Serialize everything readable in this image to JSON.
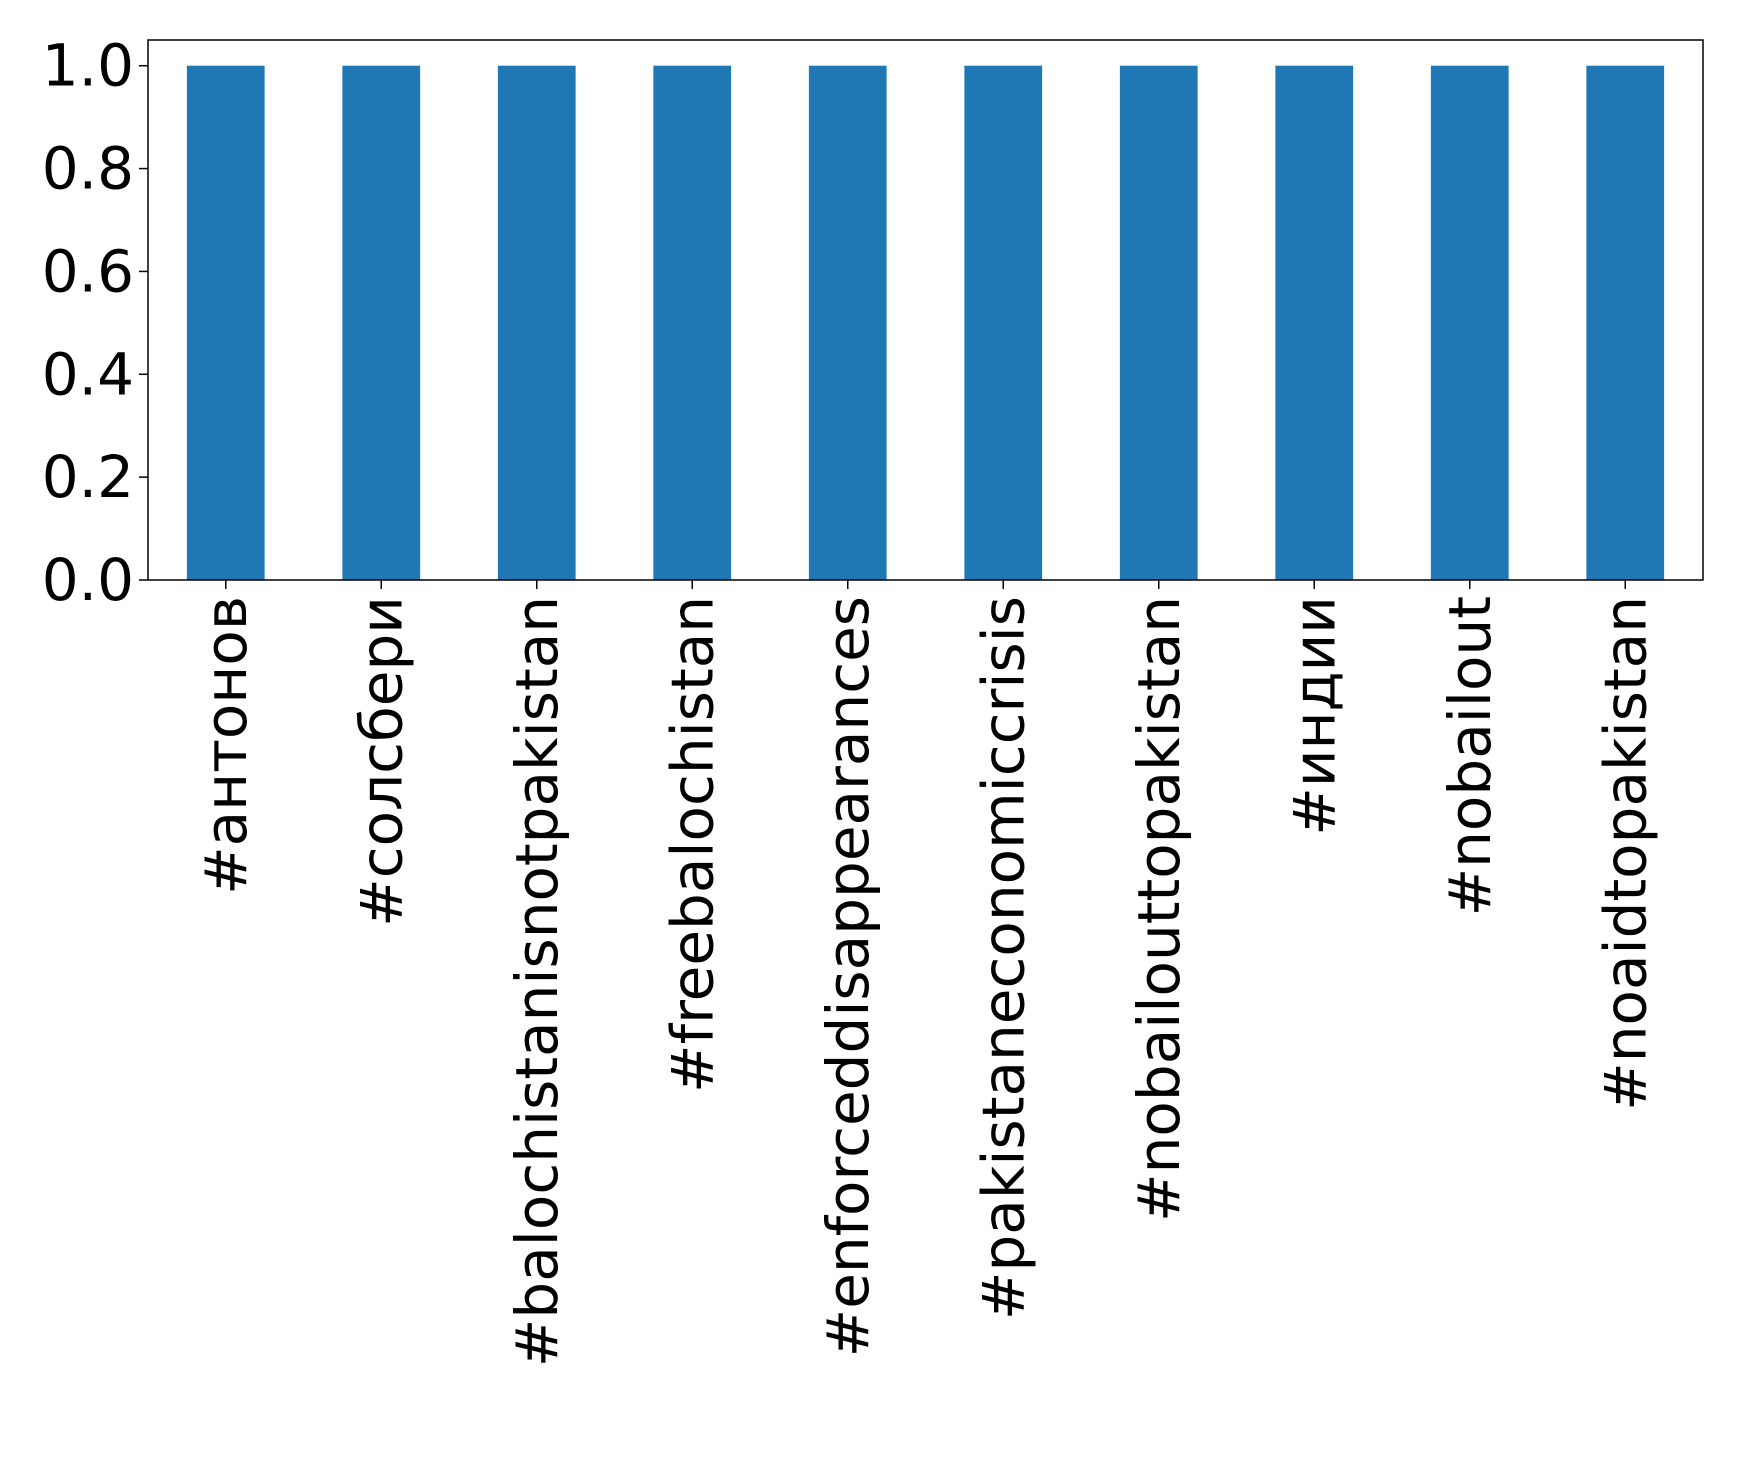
{
  "chart_data": {
    "type": "bar",
    "categories": [
      "#антонов",
      "#солсбери",
      "#balochistanisnotpakistan",
      "#freebalochistan",
      "#enforceddisappearances",
      "#pakistaneconomiccrisis",
      "#nobailouttopakistan",
      "#индии",
      "#nobailout",
      "#noaidtopakistan"
    ],
    "values": [
      1.0,
      1.0,
      1.0,
      1.0,
      1.0,
      1.0,
      1.0,
      1.0,
      1.0,
      1.0
    ],
    "yticks": [
      "0.0",
      "0.2",
      "0.4",
      "0.6",
      "0.8",
      "1.0"
    ],
    "ylim": [
      0,
      1.05
    ],
    "bar_color": "#1f77b4",
    "grid": false,
    "legend": "none"
  }
}
